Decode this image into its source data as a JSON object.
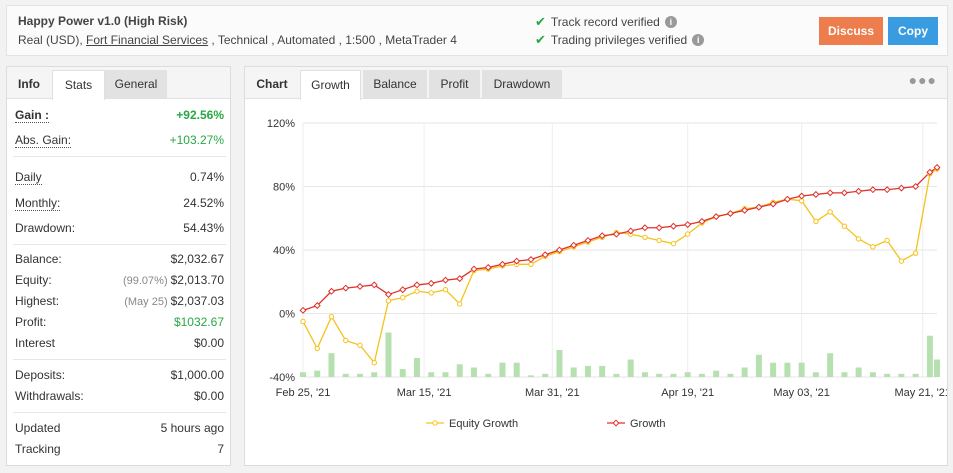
{
  "header": {
    "title": "Happy Power v1.0 (High Risk)",
    "meta_prefix": "Real (USD), ",
    "broker": "Fort Financial Services",
    "meta_suffix": " , Technical , Automated , 1:500 , MetaTrader 4",
    "verif1": "Track record verified",
    "verif2": "Trading privileges verified",
    "discuss_label": "Discuss",
    "copy_label": "Copy"
  },
  "left_tabs": {
    "info": "Info",
    "stats": "Stats",
    "general": "General"
  },
  "stats": {
    "gain_label": "Gain :",
    "gain_value": "+92.56%",
    "abs_gain_label": "Abs. Gain:",
    "abs_gain_value": "+103.27%",
    "daily_label": "Daily",
    "daily_value": "0.74%",
    "monthly_label": "Monthly:",
    "monthly_value": "24.52%",
    "drawdown_label": "Drawdown:",
    "drawdown_value": "54.43%",
    "balance_label": "Balance:",
    "balance_value": "$2,032.67",
    "equity_label": "Equity:",
    "equity_sub": "(99.07%)",
    "equity_value": "$2,013.70",
    "highest_label": "Highest:",
    "highest_sub": "(May 25)",
    "highest_value": "$2,037.03",
    "profit_label": "Profit:",
    "profit_value": "$1032.67",
    "interest_label": "Interest",
    "interest_value": "$0.00",
    "deposits_label": "Deposits:",
    "deposits_value": "$1,000.00",
    "withdrawals_label": "Withdrawals:",
    "withdrawals_value": "$0.00",
    "updated_label": "Updated",
    "updated_value": "5 hours ago",
    "tracking_label": "Tracking",
    "tracking_value": "7"
  },
  "chart_tabs": {
    "chart": "Chart",
    "growth": "Growth",
    "balance": "Balance",
    "profit": "Profit",
    "drawdown": "Drawdown"
  },
  "colors": {
    "growth": "#e0312b",
    "equity": "#f5c21b",
    "bars": "#b7e0b0"
  },
  "chart_data": {
    "type": "line",
    "ylim": [
      -40,
      120
    ],
    "y_ticks": [
      "120%",
      "80%",
      "40%",
      "0%",
      "-40%"
    ],
    "y_tick_values": [
      120,
      80,
      40,
      0,
      -40
    ],
    "x_tick_labels": [
      "Feb 25, '21",
      "Mar 15, '21",
      "Mar 31, '21",
      "Apr 19, '21",
      "May 03, '21",
      "May 21, '21"
    ],
    "x_tick_positions": [
      0,
      17,
      35,
      54,
      70,
      87
    ],
    "x_range": [
      0,
      89
    ],
    "legend": [
      "Equity Growth",
      "Growth"
    ],
    "legend_position": "bottom",
    "series": [
      {
        "name": "Growth",
        "x": [
          0,
          2,
          4,
          6,
          8,
          10,
          12,
          14,
          16,
          18,
          20,
          22,
          24,
          26,
          28,
          30,
          32,
          34,
          36,
          38,
          40,
          42,
          44,
          46,
          48,
          50,
          52,
          54,
          56,
          58,
          60,
          62,
          64,
          66,
          68,
          70,
          72,
          74,
          76,
          78,
          80,
          82,
          84,
          86,
          88,
          89
        ],
        "y": [
          2,
          5,
          14,
          16,
          17,
          18,
          12,
          15,
          18,
          19,
          21,
          22,
          28,
          29,
          31,
          33,
          34,
          37,
          40,
          43,
          46,
          49,
          50,
          52,
          54,
          54,
          55,
          56,
          58,
          61,
          63,
          65,
          67,
          69,
          72,
          74,
          75,
          76,
          76,
          77,
          78,
          78,
          79,
          80,
          89,
          92
        ]
      },
      {
        "name": "Equity Growth",
        "x": [
          0,
          2,
          4,
          6,
          8,
          10,
          12,
          14,
          16,
          18,
          20,
          22,
          24,
          26,
          28,
          30,
          32,
          34,
          36,
          38,
          40,
          42,
          44,
          46,
          48,
          50,
          52,
          54,
          56,
          58,
          60,
          62,
          64,
          66,
          68,
          70,
          72,
          74,
          76,
          78,
          80,
          82,
          84,
          86,
          88,
          89
        ],
        "y": [
          -5,
          -22,
          -2,
          -17,
          -20,
          -31,
          8,
          10,
          14,
          13,
          15,
          6,
          27,
          28,
          30,
          31,
          31,
          36,
          39,
          42,
          45,
          48,
          51,
          50,
          48,
          46,
          44,
          50,
          57,
          61,
          63,
          66,
          67,
          70,
          72,
          71,
          58,
          64,
          55,
          47,
          42,
          46,
          33,
          38,
          88,
          91
        ]
      },
      {
        "name": "Daily Profit",
        "x": [
          0,
          2,
          4,
          6,
          8,
          10,
          12,
          14,
          16,
          18,
          20,
          22,
          24,
          26,
          28,
          30,
          32,
          34,
          36,
          38,
          40,
          42,
          44,
          46,
          48,
          50,
          52,
          54,
          56,
          58,
          60,
          62,
          64,
          66,
          68,
          70,
          72,
          74,
          76,
          78,
          80,
          82,
          84,
          86,
          88,
          89
        ],
        "y": [
          3,
          4,
          15,
          2,
          2,
          3,
          28,
          5,
          12,
          3,
          3,
          8,
          6,
          2,
          9,
          9,
          1,
          2,
          17,
          6,
          7,
          7,
          2,
          11,
          3,
          2,
          2,
          3,
          2,
          4,
          2,
          6,
          14,
          9,
          9,
          9,
          3,
          15,
          3,
          6,
          3,
          2,
          2,
          2,
          26,
          11
        ]
      }
    ]
  }
}
